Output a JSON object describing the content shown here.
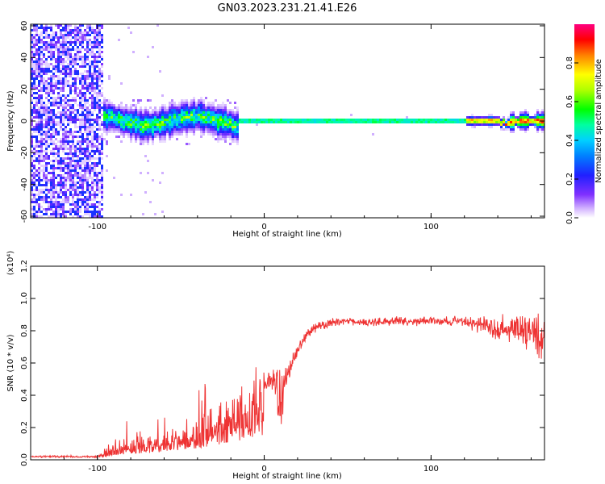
{
  "figure": {
    "title": "GN03.2023.231.21.41.E26"
  },
  "chart_data": [
    {
      "type": "heatmap",
      "xlabel": "Height of straight line (km)",
      "ylabel": "Frequency (Hz)",
      "xlim": [
        -140,
        168
      ],
      "ylim": [
        -61,
        61
      ],
      "x_ticks": [
        "-100",
        "0",
        "100"
      ],
      "y_ticks": [
        "-60",
        "-40",
        "-20",
        "0",
        "20",
        "40",
        "60"
      ],
      "colorbar": {
        "label": "Normalized spectral amplitude",
        "range": [
          0,
          1
        ],
        "ticks": [
          "0.0",
          "0.2",
          "0.4",
          "0.6",
          "0.8"
        ],
        "colormap": [
          "#ffffff",
          "#b070ff",
          "#4000ff",
          "#0040ff",
          "#00c0ff",
          "#00ffa0",
          "#00ff00",
          "#a0ff00",
          "#ffff00",
          "#ff9000",
          "#ff0000",
          "#ff0070"
        ]
      },
      "regions": [
        {
          "x_from": -140,
          "x_to": -97,
          "kind": "broadband-noise"
        },
        {
          "x_from": -97,
          "x_to": -15,
          "kind": "noisy-band-near-0Hz"
        },
        {
          "x_from": -15,
          "x_to": 168,
          "kind": "narrow-band-at-0Hz"
        }
      ]
    },
    {
      "type": "line",
      "xlabel": "Height of straight line (km)",
      "ylabel": "SNR (10 * v/v)",
      "yscale_label": "(x10⁴)",
      "xlim": [
        -140,
        168
      ],
      "ylim": [
        0,
        1.2
      ],
      "x_ticks": [
        "-100",
        "0",
        "100"
      ],
      "y_ticks": [
        "0.0",
        "0.2",
        "0.4",
        "0.6",
        "0.8",
        "1.0",
        "1.2"
      ],
      "line_color": "#ee3333",
      "series": [
        {
          "x": [
            -140,
            -120,
            -100,
            -97,
            -90,
            -80,
            -70,
            -60,
            -50,
            -40,
            -30,
            -20,
            -10,
            -5,
            0,
            5,
            10,
            15,
            20,
            25,
            30,
            40,
            50,
            60,
            80,
            100,
            120,
            130,
            140,
            150,
            160,
            168
          ],
          "y": [
            0.02,
            0.02,
            0.02,
            0.03,
            0.08,
            0.1,
            0.12,
            0.14,
            0.17,
            0.2,
            0.25,
            0.3,
            0.35,
            0.4,
            0.45,
            0.5,
            0.46,
            0.55,
            0.68,
            0.78,
            0.82,
            0.85,
            0.86,
            0.85,
            0.86,
            0.86,
            0.85,
            0.84,
            0.82,
            0.8,
            0.78,
            0.75
          ],
          "spread": [
            0.01,
            0.01,
            0.01,
            0.03,
            0.1,
            0.12,
            0.14,
            0.16,
            0.18,
            0.22,
            0.26,
            0.2,
            0.14,
            0.12,
            0.1,
            0.12,
            0.14,
            0.1,
            0.08,
            0.06,
            0.05,
            0.05,
            0.04,
            0.04,
            0.04,
            0.05,
            0.05,
            0.08,
            0.12,
            0.16,
            0.2,
            0.28
          ]
        }
      ]
    }
  ]
}
